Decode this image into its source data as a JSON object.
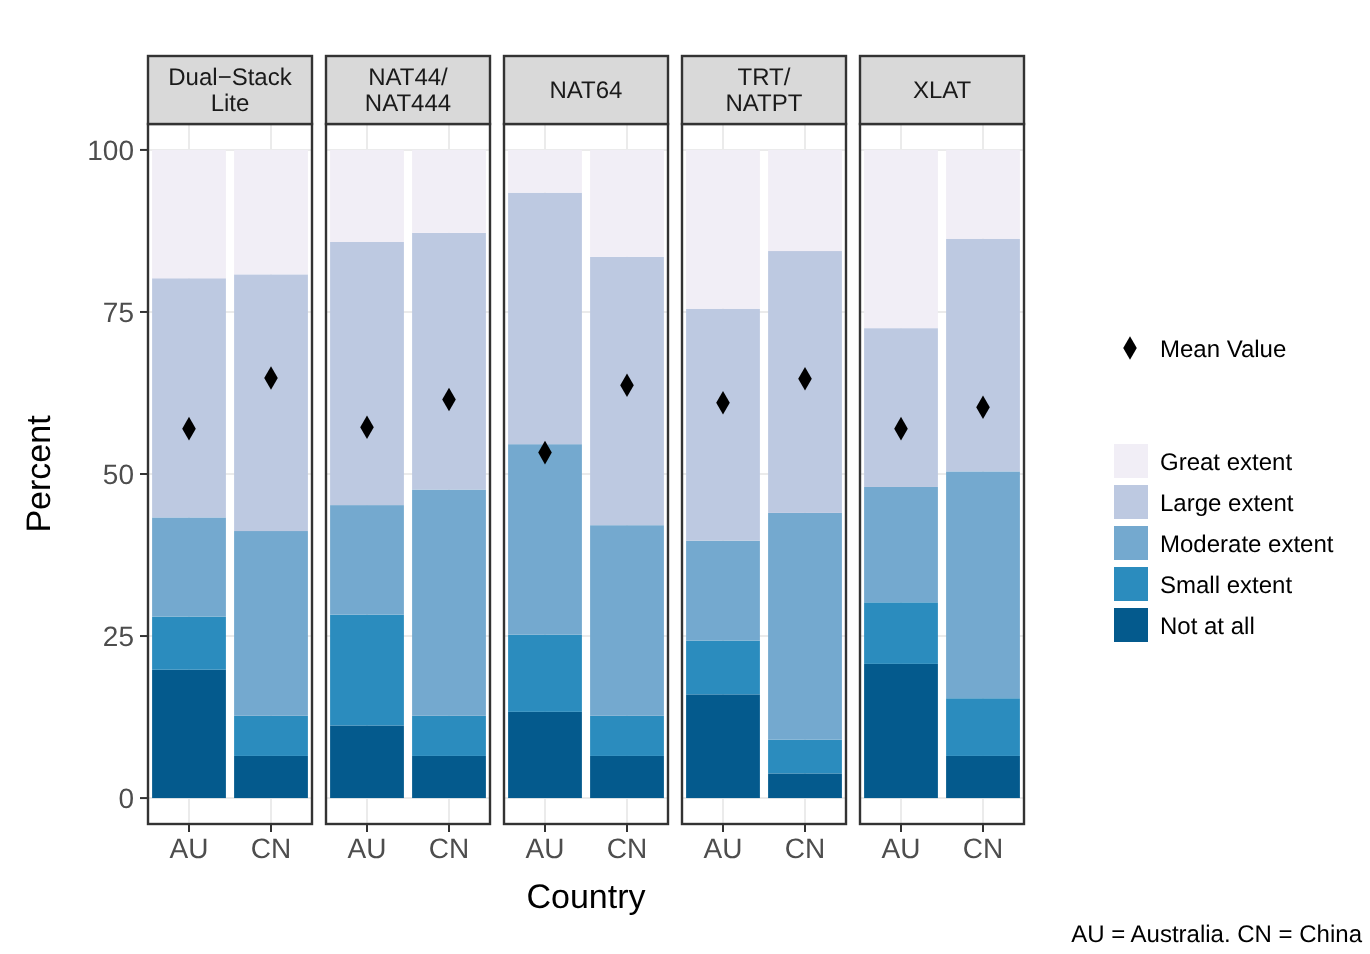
{
  "chart_data": [
    {
      "type": "bar",
      "title": "Dual−Stack\nLite",
      "ylabel": "Percent",
      "categories": [
        "AU",
        "CN"
      ],
      "stacked": true,
      "ylim": [
        -4,
        104
      ],
      "yticks": [
        0,
        25,
        50,
        75,
        100
      ],
      "grid": true,
      "series": [
        {
          "color": "#045a8d",
          "values": [
            19.8,
            6.5
          ]
        },
        {
          "color": "#2b8cbe",
          "values": [
            8.2,
            6.2
          ]
        },
        {
          "color": "#74a9cf",
          "values": [
            15.3,
            28.5
          ]
        },
        {
          "color": "#bdc9e1",
          "values": [
            36.9,
            39.6
          ]
        },
        {
          "color": "#f1eef6",
          "values": [
            19.8,
            19.2
          ]
        },
        {
          "type": "scatter",
          "marker": "diamond",
          "color": "#000000",
          "x": [
            "AU",
            "CN"
          ],
          "values": [
            57,
            64.8
          ]
        }
      ]
    },
    {
      "type": "bar",
      "title": "NAT44/\nNAT444",
      "categories": [
        "AU",
        "CN"
      ],
      "stacked": true,
      "ylim": [
        -4,
        104
      ],
      "yticks": [
        0,
        25,
        50,
        75,
        100
      ],
      "grid": true,
      "tick_labels": "x",
      "series": [
        {
          "color": "#045a8d",
          "values": [
            11.2,
            6.5
          ]
        },
        {
          "color": "#2b8cbe",
          "values": [
            17.1,
            6.2
          ]
        },
        {
          "color": "#74a9cf",
          "values": [
            16.9,
            34.9
          ]
        },
        {
          "color": "#bdc9e1",
          "values": [
            40.6,
            39.6
          ]
        },
        {
          "color": "#f1eef6",
          "values": [
            14.2,
            12.8
          ]
        },
        {
          "type": "scatter",
          "marker": "diamond",
          "color": "#000000",
          "x": [
            "AU",
            "CN"
          ],
          "values": [
            57.2,
            61.5
          ]
        }
      ]
    },
    {
      "type": "bar",
      "title": "NAT64",
      "xlabel": "Country",
      "categories": [
        "AU",
        "CN"
      ],
      "stacked": true,
      "ylim": [
        -4,
        104
      ],
      "yticks": [
        0,
        25,
        50,
        75,
        100
      ],
      "grid": true,
      "tick_labels": "x",
      "series": [
        {
          "color": "#045a8d",
          "values": [
            13.3,
            6.5
          ]
        },
        {
          "color": "#2b8cbe",
          "values": [
            11.9,
            6.2
          ]
        },
        {
          "color": "#74a9cf",
          "values": [
            29.4,
            29.4
          ]
        },
        {
          "color": "#bdc9e1",
          "values": [
            38.8,
            41.4
          ]
        },
        {
          "color": "#f1eef6",
          "values": [
            6.6,
            16.5
          ]
        },
        {
          "type": "scatter",
          "marker": "diamond",
          "color": "#000000",
          "x": [
            "AU",
            "CN"
          ],
          "values": [
            53.3,
            63.7
          ]
        }
      ]
    },
    {
      "type": "bar",
      "title": "TRT/\nNATPT",
      "categories": [
        "AU",
        "CN"
      ],
      "stacked": true,
      "ylim": [
        -4,
        104
      ],
      "yticks": [
        0,
        25,
        50,
        75,
        100
      ],
      "grid": true,
      "tick_labels": "x",
      "series": [
        {
          "color": "#045a8d",
          "values": [
            16,
            3.8
          ]
        },
        {
          "color": "#2b8cbe",
          "values": [
            8.3,
            5.2
          ]
        },
        {
          "color": "#74a9cf",
          "values": [
            15.4,
            35
          ]
        },
        {
          "color": "#bdc9e1",
          "values": [
            35.8,
            40.4
          ]
        },
        {
          "color": "#f1eef6",
          "values": [
            24.5,
            15.6
          ]
        },
        {
          "type": "scatter",
          "marker": "diamond",
          "color": "#000000",
          "x": [
            "AU",
            "CN"
          ],
          "values": [
            61,
            64.7
          ]
        }
      ]
    },
    {
      "type": "bar",
      "title": "XLAT",
      "categories": [
        "AU",
        "CN"
      ],
      "stacked": true,
      "ylim": [
        -4,
        104
      ],
      "yticks": [
        0,
        25,
        50,
        75,
        100
      ],
      "grid": true,
      "tick_labels": "x",
      "legend": "right",
      "annotations": [
        "AU = Australia. CN = China"
      ],
      "series": [
        {
          "name": "Not at all",
          "color": "#045a8d",
          "values": [
            20.7,
            6.5
          ]
        },
        {
          "name": "Small extent",
          "color": "#2b8cbe",
          "values": [
            9.5,
            8.9
          ]
        },
        {
          "name": "Moderate extent",
          "color": "#74a9cf",
          "values": [
            17.8,
            35
          ]
        },
        {
          "name": "Large extent",
          "color": "#bdc9e1",
          "values": [
            24.5,
            35.9
          ]
        },
        {
          "name": "Great extent",
          "color": "#f1eef6",
          "values": [
            27.5,
            13.7
          ]
        },
        {
          "name": "Mean Value",
          "type": "scatter",
          "marker": "diamond",
          "color": "#000000",
          "x": [
            "AU",
            "CN"
          ],
          "values": [
            57,
            60.3
          ]
        }
      ]
    }
  ]
}
